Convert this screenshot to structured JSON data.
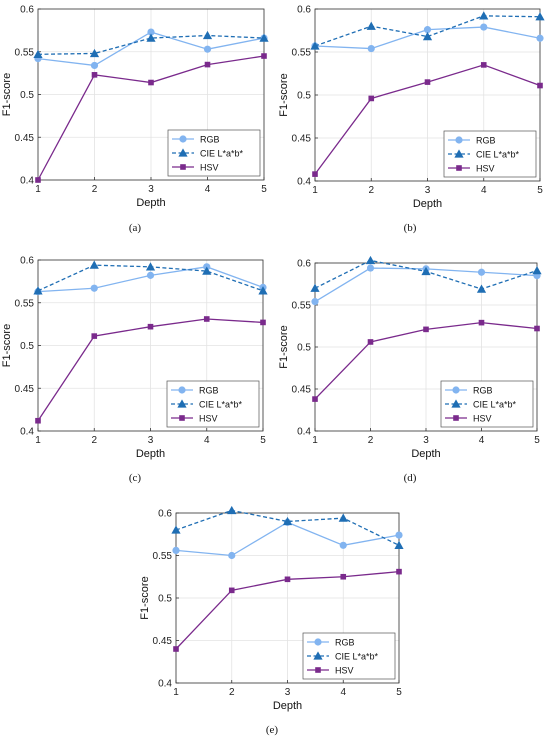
{
  "chart_data": [
    {
      "type": "line",
      "caption": "(a)",
      "x": [
        1,
        2,
        3,
        4,
        5
      ],
      "xlabel": "Depth",
      "ylabel": "F1-score",
      "ylim": [
        0.4,
        0.6
      ],
      "yticks": [
        "0.4",
        "0.45",
        "0.5",
        "0.55",
        "0.6"
      ],
      "xticks": [
        "1",
        "2",
        "3",
        "4",
        "5"
      ],
      "legend": "bottom-right",
      "series": [
        {
          "name": "RGB",
          "values": [
            0.542,
            0.534,
            0.573,
            0.553,
            0.566
          ]
        },
        {
          "name": "CIE L*a*b*",
          "values": [
            0.547,
            0.548,
            0.566,
            0.569,
            0.566
          ]
        },
        {
          "name": "HSV",
          "values": [
            0.4,
            0.523,
            0.514,
            0.535,
            0.545
          ]
        }
      ]
    },
    {
      "type": "line",
      "caption": "(b)",
      "x": [
        1,
        2,
        3,
        4,
        5
      ],
      "xlabel": "Depth",
      "ylabel": "F1-score",
      "ylim": [
        0.4,
        0.6
      ],
      "yticks": [
        "0.4",
        "0.45",
        "0.5",
        "0.55",
        "0.6"
      ],
      "xticks": [
        "1",
        "2",
        "3",
        "4",
        "5"
      ],
      "legend": "bottom-right",
      "series": [
        {
          "name": "RGB",
          "values": [
            0.557,
            0.554,
            0.576,
            0.579,
            0.566
          ]
        },
        {
          "name": "CIE L*a*b*",
          "values": [
            0.557,
            0.58,
            0.568,
            0.592,
            0.591
          ]
        },
        {
          "name": "HSV",
          "values": [
            0.408,
            0.496,
            0.515,
            0.535,
            0.511
          ]
        }
      ]
    },
    {
      "type": "line",
      "caption": "(c)",
      "x": [
        1,
        2,
        3,
        4,
        5
      ],
      "xlabel": "Depth",
      "ylabel": "F1-score",
      "ylim": [
        0.4,
        0.6
      ],
      "yticks": [
        "0.4",
        "0.45",
        "0.5",
        "0.55",
        "0.6"
      ],
      "xticks": [
        "1",
        "2",
        "3",
        "4",
        "5"
      ],
      "legend": "bottom-right",
      "series": [
        {
          "name": "RGB",
          "values": [
            0.563,
            0.567,
            0.582,
            0.592,
            0.568
          ]
        },
        {
          "name": "CIE L*a*b*",
          "values": [
            0.564,
            0.594,
            0.592,
            0.587,
            0.564
          ]
        },
        {
          "name": "HSV",
          "values": [
            0.412,
            0.511,
            0.522,
            0.531,
            0.527
          ]
        }
      ]
    },
    {
      "type": "line",
      "caption": "(d)",
      "x": [
        1,
        2,
        3,
        4,
        5
      ],
      "xlabel": "Depth",
      "ylabel": "F1-score",
      "ylim": [
        0.4,
        0.6
      ],
      "yticks": [
        "0.4",
        "0.45",
        "0.5",
        "0.55",
        "0.6"
      ],
      "xticks": [
        "1",
        "2",
        "3",
        "4",
        "5"
      ],
      "legend": "bottom-right",
      "series": [
        {
          "name": "RGB",
          "values": [
            0.554,
            0.594,
            0.593,
            0.589,
            0.585
          ]
        },
        {
          "name": "CIE L*a*b*",
          "values": [
            0.57,
            0.603,
            0.59,
            0.569,
            0.591
          ]
        },
        {
          "name": "HSV",
          "values": [
            0.438,
            0.506,
            0.521,
            0.529,
            0.522
          ]
        }
      ]
    },
    {
      "type": "line",
      "caption": "(e)",
      "x": [
        1,
        2,
        3,
        4,
        5
      ],
      "xlabel": "Depth",
      "ylabel": "F1-score",
      "ylim": [
        0.4,
        0.6
      ],
      "yticks": [
        "0.4",
        "0.45",
        "0.5",
        "0.55",
        "0.6"
      ],
      "xticks": [
        "1",
        "2",
        "3",
        "4",
        "5"
      ],
      "legend": "bottom-right",
      "series": [
        {
          "name": "RGB",
          "values": [
            0.556,
            0.55,
            0.589,
            0.562,
            0.574
          ]
        },
        {
          "name": "CIE L*a*b*",
          "values": [
            0.58,
            0.603,
            0.59,
            0.594,
            0.562
          ]
        },
        {
          "name": "HSV",
          "values": [
            0.44,
            0.509,
            0.522,
            0.525,
            0.531
          ]
        }
      ]
    }
  ],
  "style": {
    "colors": {
      "RGB": "#82b4f0",
      "CIE L*a*b*": "#1f6eb4",
      "HSV": "#7a2a8c"
    },
    "markers": {
      "RGB": "circle",
      "CIE L*a*b*": "triangle",
      "HSV": "square"
    },
    "linestyles": {
      "RGB": "solid",
      "CIE L*a*b*": "dashed",
      "HSV": "solid"
    }
  }
}
